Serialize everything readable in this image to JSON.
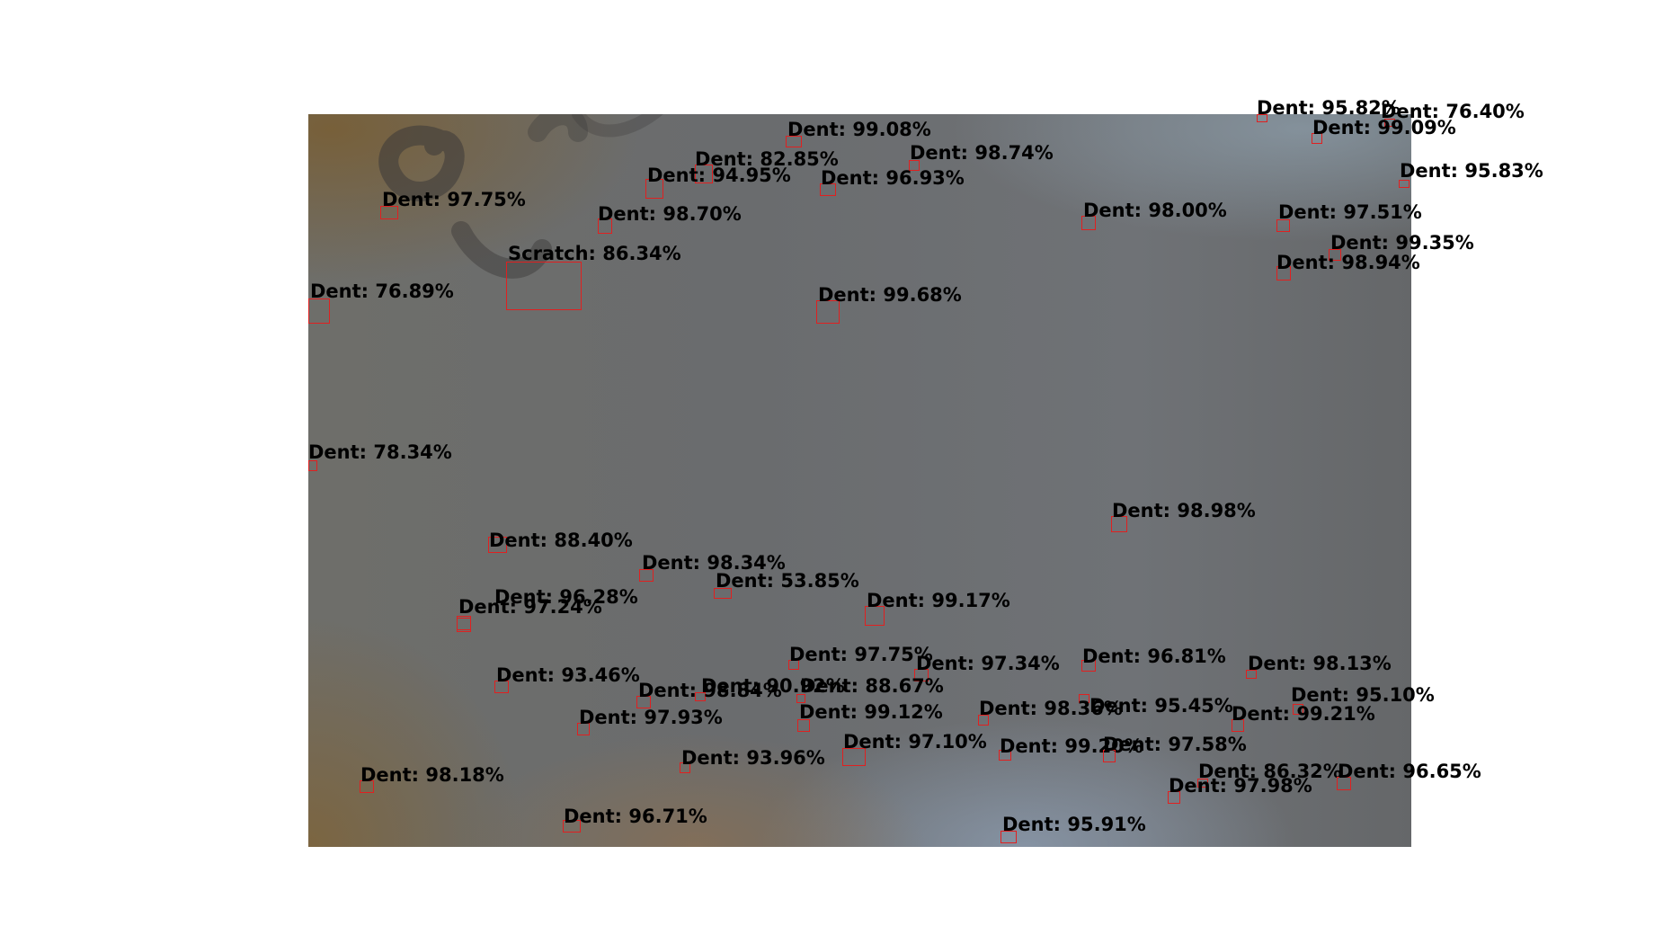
{
  "detections": [
    {
      "label": "Dent: 95.82%"
    },
    {
      "label": "Dent: 76.40%"
    },
    {
      "label": "Dent: 99.08%"
    },
    {
      "label": "Dent: 99.09%"
    },
    {
      "label": "Dent: 82.85%"
    },
    {
      "label": "Dent: 98.74%"
    },
    {
      "label": "Dent: 94.95%"
    },
    {
      "label": "Dent: 96.93%"
    },
    {
      "label": "Dent: 95.83%"
    },
    {
      "label": "Dent: 97.75%"
    },
    {
      "label": "Dent: 98.70%"
    },
    {
      "label": "Dent: 98.00%"
    },
    {
      "label": "Dent: 97.51%"
    },
    {
      "label": "Scratch: 86.34%"
    },
    {
      "label": "Dent: 99.35%"
    },
    {
      "label": "Dent: 98.94%"
    },
    {
      "label": "Dent: 76.89%"
    },
    {
      "label": "Dent: 99.68%"
    },
    {
      "label": "Dent: 78.34%"
    },
    {
      "label": "Dent: 98.98%"
    },
    {
      "label": "Dent: 88.40%"
    },
    {
      "label": "Dent: 98.34%"
    },
    {
      "label": "Dent: 53.85%"
    },
    {
      "label": "Dent: 96.28%"
    },
    {
      "label": "Dent: 99.17%"
    },
    {
      "label": "Dent: 97.24%"
    },
    {
      "label": "Dent: 97.75%"
    },
    {
      "label": "Dent: 97.34%"
    },
    {
      "label": "Dent: 96.81%"
    },
    {
      "label": "Dent: 98.13%"
    },
    {
      "label": "Dent: 93.46%"
    },
    {
      "label": "Dent: 90.92%"
    },
    {
      "label": "Dent: 98.84%"
    },
    {
      "label": "Dent: 88.67%"
    },
    {
      "label": "Dent: 95.45%"
    },
    {
      "label": "Dent: 95.10%"
    },
    {
      "label": "Dent: 99.12%"
    },
    {
      "label": "Dent: 98.36%"
    },
    {
      "label": "Dent: 99.21%"
    },
    {
      "label": "Dent: 97.93%"
    },
    {
      "label": "Dent: 97.10%"
    },
    {
      "label": "Dent: 99.20%"
    },
    {
      "label": "Dent: 97.58%"
    },
    {
      "label": "Dent: 93.96%"
    },
    {
      "label": "Dent: 98.18%"
    },
    {
      "label": "Dent: 86.32%"
    },
    {
      "label": "Dent: 96.65%"
    },
    {
      "label": "Dent: 97.98%"
    },
    {
      "label": "Dent: 96.71%"
    },
    {
      "label": "Dent: 95.91%"
    }
  ]
}
